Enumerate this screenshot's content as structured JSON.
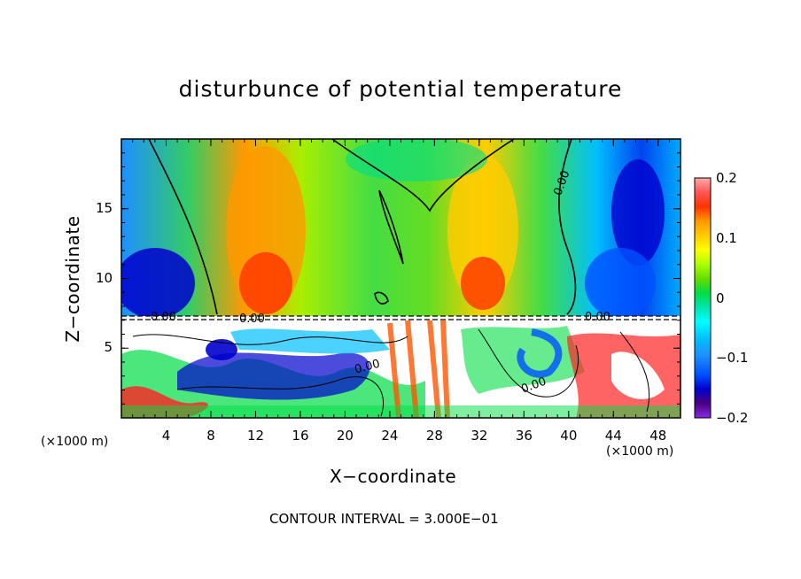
{
  "chart_data": {
    "type": "heatmap",
    "title": "disturbunce of potential temperature",
    "xlabel": "X−coordinate",
    "ylabel": "Z−coordinate",
    "x_unit_left": "(×1000 m)",
    "x_unit_right": "(×1000 m)",
    "xlim": [
      0,
      50
    ],
    "ylim": [
      0,
      20
    ],
    "x_ticks": [
      "4",
      "8",
      "12",
      "16",
      "20",
      "24",
      "28",
      "32",
      "36",
      "40",
      "44",
      "48"
    ],
    "y_ticks": [
      "5",
      "10",
      "15"
    ],
    "colorbar": {
      "ticks": [
        "0.2",
        "0.1",
        "0",
        "−0.1",
        "−0.2"
      ],
      "range": [
        -0.2,
        0.2
      ],
      "colors": [
        "#8a2be2",
        "#4b0082",
        "#0000cd",
        "#0050ff",
        "#1e90ff",
        "#00bfff",
        "#00ffff",
        "#00e5b0",
        "#00dd44",
        "#66dd00",
        "#aaff00",
        "#ffff00",
        "#ffcc00",
        "#ff9900",
        "#ff5500",
        "#ff2222",
        "#ff6666",
        "#ffaaaa"
      ]
    },
    "contour_labels": [
      "0.00",
      "0.00",
      "0.00",
      "0.00",
      "0.00",
      "0.00"
    ],
    "contour_interval": "CONTOUR INTERVAL = 3.000E−01"
  }
}
